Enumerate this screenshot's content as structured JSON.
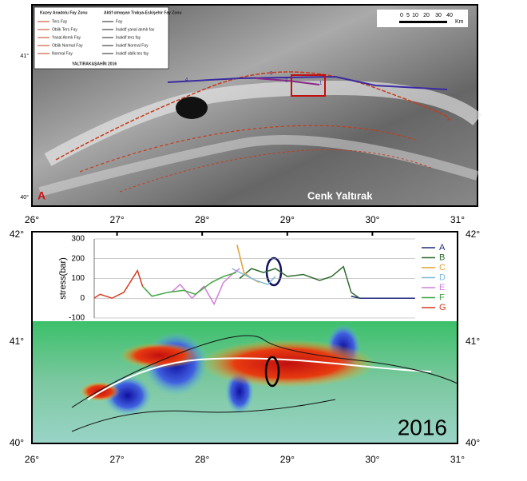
{
  "map_a": {
    "panel_label": "A",
    "credit": "Cenk Yaltırak",
    "lat_labels": [
      "41°",
      "40°"
    ],
    "segment_numbers": [
      "4",
      "3",
      "2",
      "1"
    ],
    "scale": {
      "ticks": [
        "0",
        "5",
        "10",
        "20",
        "30",
        "40"
      ],
      "unit": "Km"
    },
    "legend": {
      "heading_left": "Kuzey Anadolu Fay Zonu",
      "heading_right": "Aktif olmayan Trakya-Eskişehir Fay Zonu",
      "left_items": [
        "Ters Fay",
        "Oblik Ters Fay",
        "Yanal Atımlı Fay",
        "Oblik Normal Fay",
        "Normal Fay"
      ],
      "right_items": [
        "Fay",
        "İnaktif yanal atımlı fav",
        "İnaktif ters fay",
        "İnaktif Normal Fay",
        "İnaktif oblik tes fay"
      ],
      "source": "YALTIRAK&ŞAHİN 2016"
    }
  },
  "map_b": {
    "year": "2016",
    "lat_labels": [
      "42°",
      "41°",
      "40°"
    ]
  },
  "chart_data": {
    "type": "line",
    "ylabel": "stress(bar)",
    "xlim": [
      26,
      31
    ],
    "xticks": [
      {
        "value": 26,
        "label": "26°"
      },
      {
        "value": 27,
        "label": "27°"
      },
      {
        "value": 28,
        "label": "28°"
      },
      {
        "value": 29,
        "label": "29°"
      },
      {
        "value": 30,
        "label": "30°"
      },
      {
        "value": 31,
        "label": "31°"
      }
    ],
    "ylim": [
      -100,
      300
    ],
    "yticks": [
      -100,
      0,
      100,
      200,
      300
    ],
    "grid": true,
    "series": [
      {
        "name": "A",
        "color": "#1f2a7a",
        "x": [
          29.75,
          29.85,
          30.5
        ],
        "values": [
          10,
          0,
          0
        ]
      },
      {
        "name": "B",
        "color": "#2e6b2e",
        "x": [
          28.44,
          28.58,
          28.72,
          28.86,
          29.0,
          29.19,
          29.38,
          29.52,
          29.66,
          29.75,
          29.85
        ],
        "values": [
          100,
          150,
          130,
          150,
          110,
          120,
          90,
          110,
          160,
          30,
          0
        ]
      },
      {
        "name": "C",
        "color": "#e0a030",
        "x": [
          28.41,
          28.49,
          28.58,
          28.67
        ],
        "values": [
          270,
          130,
          100,
          80
        ]
      },
      {
        "name": "D",
        "color": "#7fb8d8",
        "x": [
          28.35,
          28.49,
          28.63,
          28.77,
          28.86
        ],
        "values": [
          150,
          120,
          90,
          70,
          110
        ]
      },
      {
        "name": "E",
        "color": "#d080d8",
        "x": [
          27.64,
          27.74,
          27.88,
          28.02,
          28.14,
          28.25,
          28.35,
          28.44
        ],
        "values": [
          30,
          70,
          0,
          60,
          -30,
          80,
          120,
          150
        ]
      },
      {
        "name": "F",
        "color": "#3fa53f",
        "x": [
          27.3,
          27.41,
          27.6,
          27.78,
          27.92,
          28.11,
          28.25,
          28.4
        ],
        "values": [
          60,
          10,
          30,
          40,
          20,
          80,
          110,
          130
        ]
      },
      {
        "name": "G",
        "color": "#d43a20",
        "x": [
          26.73,
          26.8,
          26.94,
          27.08,
          27.24,
          27.3
        ],
        "values": [
          0,
          20,
          0,
          30,
          140,
          60
        ]
      }
    ]
  }
}
